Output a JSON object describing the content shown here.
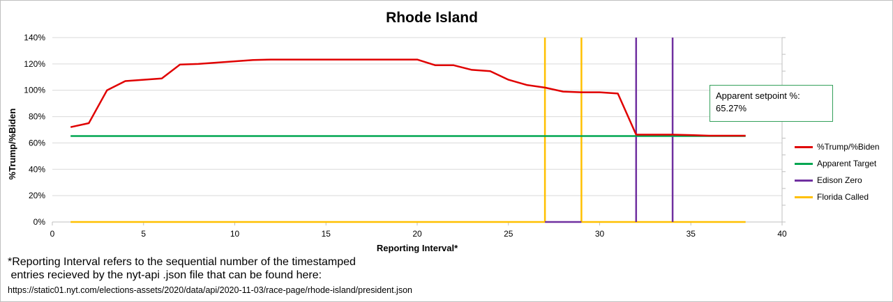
{
  "chart_data": {
    "type": "line",
    "title": "Rhode Island",
    "xlabel": "Reporting Interval*",
    "ylabel": "%Trump/%Biden",
    "xlim": [
      0,
      40
    ],
    "ylim": [
      0,
      1.4
    ],
    "x_ticks": [
      0,
      5,
      10,
      15,
      20,
      25,
      30,
      35,
      40
    ],
    "y_ticks": [
      "0%",
      "20%",
      "40%",
      "60%",
      "80%",
      "100%",
      "120%",
      "140%"
    ],
    "grid": "horizontal",
    "legend_position": "right",
    "series": [
      {
        "name": "%Trump/%Biden",
        "color": "#e00000",
        "x": [
          1,
          2,
          3,
          4,
          5,
          6,
          7,
          8,
          9,
          10,
          11,
          12,
          13,
          14,
          15,
          16,
          17,
          18,
          19,
          20,
          21,
          22,
          23,
          24,
          25,
          26,
          27,
          28,
          29,
          30,
          31,
          32,
          33,
          34,
          35,
          36,
          37,
          38
        ],
        "y": [
          0.72,
          0.75,
          1.0,
          1.07,
          1.08,
          1.09,
          1.195,
          1.2,
          1.21,
          1.22,
          1.23,
          1.233,
          1.233,
          1.233,
          1.233,
          1.233,
          1.233,
          1.233,
          1.233,
          1.233,
          1.19,
          1.19,
          1.155,
          1.145,
          1.08,
          1.04,
          1.02,
          0.99,
          0.985,
          0.985,
          0.975,
          0.663,
          0.663,
          0.663,
          0.66,
          0.655,
          0.655,
          0.655
        ]
      },
      {
        "name": "Apparent Target",
        "color": "#00a651",
        "x": [
          1,
          38
        ],
        "y": [
          0.6527,
          0.6527
        ]
      },
      {
        "name": "Edison Zero",
        "color": "#7030a0",
        "x": [
          32,
          32,
          34,
          34,
          27,
          27,
          29,
          29
        ],
        "y": [
          0,
          1.4,
          1.4,
          0,
          0,
          1.4,
          1.4,
          0
        ],
        "segments": [
          {
            "x": [
              27,
              29
            ],
            "y": [
              0,
              0
            ]
          },
          {
            "x": [
              32,
              32
            ],
            "y": [
              0,
              1.4
            ]
          },
          {
            "x": [
              34,
              34
            ],
            "y": [
              0,
              1.4
            ]
          }
        ]
      },
      {
        "name": "Florida Called",
        "color": "#ffc000",
        "segments": [
          {
            "x": [
              1,
              27
            ],
            "y": [
              0,
              0
            ]
          },
          {
            "x": [
              27,
              27
            ],
            "y": [
              0,
              1.4
            ]
          },
          {
            "x": [
              29,
              29
            ],
            "y": [
              0,
              1.4
            ]
          },
          {
            "x": [
              29,
              38
            ],
            "y": [
              0,
              0
            ]
          }
        ]
      }
    ],
    "annotation": {
      "line1": "Apparent setpoint %:",
      "line2": "65.27%"
    }
  },
  "footnote": {
    "text": "*Reporting Interval refers to the sequential number of the timestamped\n entries recieved by the nyt-api .json file that can be found here:",
    "url": "https://static01.nyt.com/elections-assets/2020/data/api/2020-11-03/race-page/rhode-island/president.json"
  }
}
